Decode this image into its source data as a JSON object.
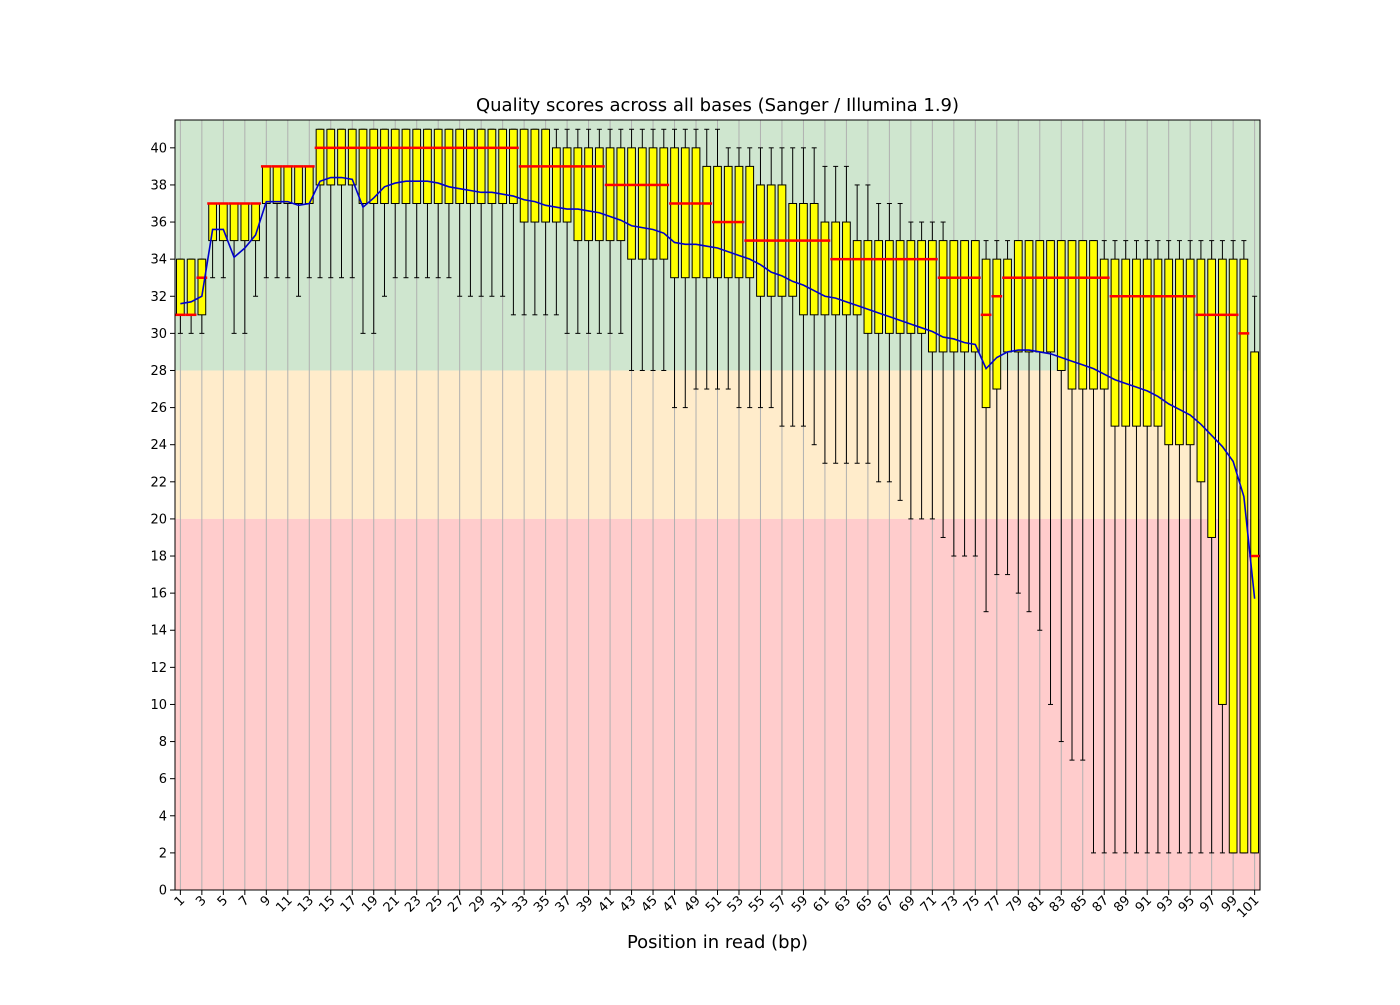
{
  "chart_data": {
    "type": "box",
    "title": "Quality scores across all bases (Sanger / Illumina 1.9)",
    "xlabel": "Position in read (bp)",
    "ylabel": "",
    "ylim": [
      0,
      41.5
    ],
    "yticks": [
      0,
      2,
      4,
      6,
      8,
      10,
      12,
      14,
      16,
      18,
      20,
      22,
      24,
      26,
      28,
      30,
      32,
      34,
      36,
      38,
      40
    ],
    "xticks": [
      1,
      3,
      5,
      7,
      9,
      11,
      13,
      15,
      17,
      19,
      21,
      23,
      25,
      27,
      29,
      31,
      33,
      35,
      37,
      39,
      41,
      43,
      45,
      47,
      49,
      51,
      53,
      55,
      57,
      59,
      61,
      63,
      65,
      67,
      69,
      71,
      73,
      75,
      77,
      79,
      81,
      83,
      85,
      87,
      89,
      91,
      93,
      95,
      97,
      99,
      101
    ],
    "grid": "vertical",
    "background_bands": [
      {
        "from": 28,
        "to": 41.5,
        "color": "#cfe6cf"
      },
      {
        "from": 20,
        "to": 28,
        "color": "#ffeccb"
      },
      {
        "from": 0,
        "to": 20,
        "color": "#ffcccc"
      }
    ],
    "colors": {
      "box_fill": "#ffff00",
      "median": "#ff0000",
      "mean_line": "#0000cc",
      "whisker": "#000000"
    },
    "positions": [
      1,
      2,
      3,
      4,
      5,
      6,
      7,
      8,
      9,
      10,
      11,
      12,
      13,
      14,
      15,
      16,
      17,
      18,
      19,
      20,
      21,
      22,
      23,
      24,
      25,
      26,
      27,
      28,
      29,
      30,
      31,
      32,
      33,
      34,
      35,
      36,
      37,
      38,
      39,
      40,
      41,
      42,
      43,
      44,
      45,
      46,
      47,
      48,
      49,
      50,
      51,
      52,
      53,
      54,
      55,
      56,
      57,
      58,
      59,
      60,
      61,
      62,
      63,
      64,
      65,
      66,
      67,
      68,
      69,
      70,
      71,
      72,
      73,
      74,
      75,
      76,
      77,
      78,
      79,
      80,
      81,
      82,
      83,
      84,
      85,
      86,
      87,
      88,
      89,
      90,
      91,
      92,
      93,
      94,
      95,
      96,
      97,
      98,
      99,
      100,
      101
    ],
    "q1": [
      31,
      31,
      31,
      35,
      35,
      35,
      35,
      35,
      37,
      37,
      37,
      37,
      37,
      38,
      38,
      38,
      38,
      37,
      37,
      37,
      37,
      37,
      37,
      37,
      37,
      37,
      37,
      37,
      37,
      37,
      37,
      37,
      36,
      36,
      36,
      36,
      36,
      35,
      35,
      35,
      35,
      35,
      34,
      34,
      34,
      34,
      33,
      33,
      33,
      33,
      33,
      33,
      33,
      33,
      32,
      32,
      32,
      32,
      31,
      31,
      31,
      31,
      31,
      31,
      30,
      30,
      30,
      30,
      30,
      30,
      29,
      29,
      29,
      29,
      29,
      26,
      27,
      29,
      29,
      29,
      29,
      29,
      28,
      27,
      27,
      27,
      27,
      25,
      25,
      25,
      25,
      25,
      24,
      24,
      24,
      22,
      19,
      10,
      2,
      2,
      2
    ],
    "median": [
      31,
      31,
      33,
      37,
      37,
      37,
      37,
      37,
      39,
      39,
      39,
      39,
      39,
      40,
      40,
      40,
      40,
      40,
      40,
      40,
      40,
      40,
      40,
      40,
      40,
      40,
      40,
      40,
      40,
      40,
      40,
      40,
      39,
      39,
      39,
      39,
      39,
      39,
      39,
      39,
      38,
      38,
      38,
      38,
      38,
      38,
      37,
      37,
      37,
      37,
      36,
      36,
      36,
      35,
      35,
      35,
      35,
      35,
      35,
      35,
      35,
      34,
      34,
      34,
      34,
      34,
      34,
      34,
      34,
      34,
      34,
      33,
      33,
      33,
      33,
      31,
      32,
      33,
      33,
      33,
      33,
      33,
      33,
      33,
      33,
      33,
      33,
      32,
      32,
      32,
      32,
      32,
      32,
      32,
      32,
      31,
      31,
      31,
      31,
      30,
      18
    ],
    "q3": [
      34,
      34,
      34,
      37,
      37,
      37,
      37,
      37,
      39,
      39,
      39,
      39,
      39,
      41,
      41,
      41,
      41,
      41,
      41,
      41,
      41,
      41,
      41,
      41,
      41,
      41,
      41,
      41,
      41,
      41,
      41,
      41,
      41,
      41,
      41,
      40,
      40,
      40,
      40,
      40,
      40,
      40,
      40,
      40,
      40,
      40,
      40,
      40,
      40,
      39,
      39,
      39,
      39,
      39,
      38,
      38,
      38,
      37,
      37,
      37,
      36,
      36,
      36,
      35,
      35,
      35,
      35,
      35,
      35,
      35,
      35,
      35,
      35,
      35,
      35,
      34,
      34,
      34,
      35,
      35,
      35,
      35,
      35,
      35,
      35,
      35,
      34,
      34,
      34,
      34,
      34,
      34,
      34,
      34,
      34,
      34,
      34,
      34,
      34,
      34,
      29
    ],
    "whisker_low": [
      30,
      30,
      30,
      33,
      33,
      30,
      30,
      32,
      33,
      33,
      33,
      32,
      33,
      33,
      33,
      33,
      33,
      30,
      30,
      32,
      33,
      33,
      33,
      33,
      33,
      33,
      32,
      32,
      32,
      32,
      32,
      31,
      31,
      31,
      31,
      31,
      30,
      30,
      30,
      30,
      30,
      30,
      28,
      28,
      28,
      28,
      26,
      26,
      27,
      27,
      27,
      27,
      26,
      26,
      26,
      26,
      25,
      25,
      25,
      24,
      23,
      23,
      23,
      23,
      23,
      22,
      22,
      21,
      20,
      20,
      20,
      19,
      18,
      18,
      18,
      15,
      17,
      17,
      16,
      15,
      14,
      10,
      8,
      7,
      7,
      2,
      2,
      2,
      2,
      2,
      2,
      2,
      2,
      2,
      2,
      2,
      2,
      2,
      2,
      2,
      2
    ],
    "whisker_high": [
      34,
      34,
      34,
      37,
      37,
      37,
      37,
      37,
      39,
      39,
      39,
      39,
      39,
      41,
      41,
      41,
      41,
      41,
      41,
      41,
      41,
      41,
      41,
      41,
      41,
      41,
      41,
      41,
      41,
      41,
      41,
      41,
      41,
      41,
      41,
      41,
      41,
      41,
      41,
      41,
      41,
      41,
      41,
      41,
      41,
      41,
      41,
      41,
      41,
      41,
      41,
      40,
      40,
      40,
      40,
      40,
      40,
      40,
      40,
      40,
      39,
      39,
      39,
      38,
      38,
      37,
      37,
      37,
      36,
      36,
      36,
      36,
      35,
      35,
      35,
      35,
      35,
      35,
      35,
      35,
      35,
      35,
      35,
      35,
      35,
      35,
      35,
      35,
      35,
      35,
      35,
      35,
      35,
      35,
      35,
      35,
      35,
      35,
      35,
      35,
      32
    ],
    "mean": [
      31.6,
      31.7,
      32.0,
      35.6,
      35.6,
      34.1,
      34.6,
      35.3,
      37.1,
      37.1,
      37.1,
      36.9,
      37.0,
      38.2,
      38.4,
      38.4,
      38.3,
      36.8,
      37.3,
      37.9,
      38.1,
      38.2,
      38.2,
      38.2,
      38.1,
      37.9,
      37.8,
      37.7,
      37.6,
      37.6,
      37.5,
      37.4,
      37.2,
      37.1,
      36.9,
      36.8,
      36.7,
      36.7,
      36.6,
      36.5,
      36.3,
      36.1,
      35.8,
      35.7,
      35.6,
      35.4,
      34.9,
      34.8,
      34.8,
      34.7,
      34.6,
      34.4,
      34.2,
      34.0,
      33.7,
      33.3,
      33.1,
      32.8,
      32.6,
      32.3,
      32.0,
      31.9,
      31.7,
      31.5,
      31.3,
      31.1,
      30.9,
      30.7,
      30.5,
      30.3,
      30.1,
      29.8,
      29.7,
      29.5,
      29.4,
      28.1,
      28.7,
      29.0,
      29.1,
      29.1,
      29.0,
      28.9,
      28.7,
      28.5,
      28.3,
      28.1,
      27.8,
      27.5,
      27.3,
      27.1,
      26.9,
      26.6,
      26.2,
      25.9,
      25.6,
      25.1,
      24.5,
      23.9,
      23.1,
      21.2,
      15.7
    ]
  }
}
